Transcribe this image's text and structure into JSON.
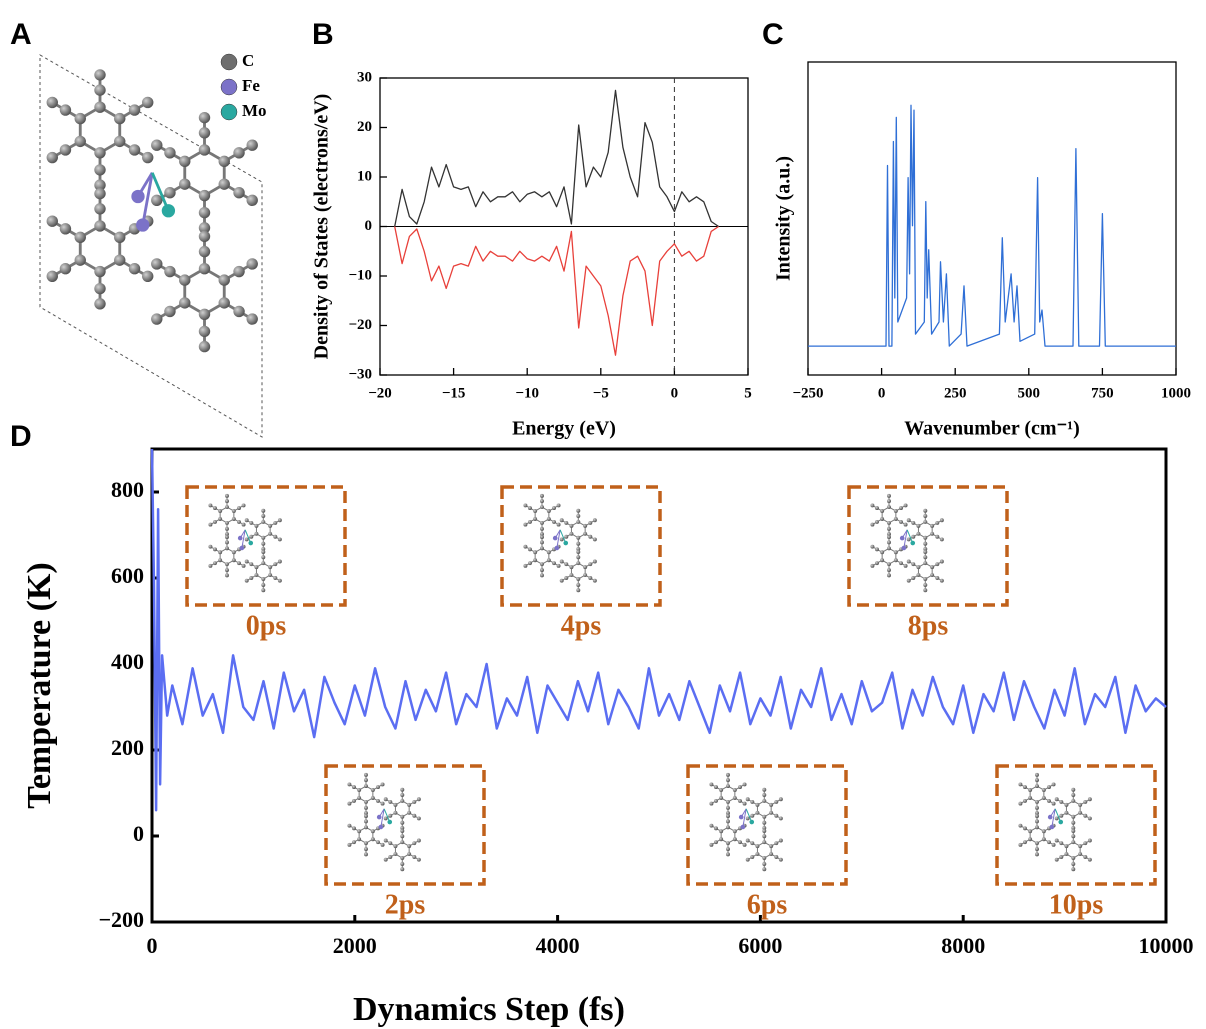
{
  "chart_data": [
    {
      "type": "structure",
      "panel": "A",
      "legend": [
        "C",
        "Fe",
        "Mo"
      ],
      "colors": [
        "#6e6e6e",
        "#7b72c8",
        "#2aa8a0"
      ]
    },
    {
      "type": "line",
      "panel": "B",
      "xlabel": "Energy (eV)",
      "ylabel": "Density of States (electrons/eV)",
      "xlim": [
        -20,
        5
      ],
      "ylim": [
        -30,
        30
      ],
      "xticks": [
        {
          "value": -20,
          "label": "−20"
        },
        {
          "value": -15,
          "label": "−15"
        },
        {
          "value": -10,
          "label": "−10"
        },
        {
          "value": -5,
          "label": "−5"
        },
        0,
        5
      ],
      "yticks": [
        {
          "value": -30,
          "label": "−30"
        },
        {
          "value": -20,
          "label": "−20"
        },
        {
          "value": -10,
          "label": "−10"
        },
        0,
        10,
        20,
        30
      ],
      "x": [
        -19,
        -18.5,
        -18,
        -17.5,
        -17,
        -16.5,
        -16,
        -15.5,
        -15,
        -14.5,
        -14,
        -13.5,
        -13,
        -12.5,
        -12,
        -11.5,
        -11,
        -10.5,
        -10,
        -9.5,
        -9,
        -8.5,
        -8,
        -7.5,
        -7,
        -6.5,
        -6,
        -5.5,
        -5,
        -4.5,
        -4,
        -3.5,
        -3,
        -2.5,
        -2,
        -1.5,
        -1,
        -0.5,
        0,
        0.5,
        1,
        1.5,
        2,
        2.5,
        3
      ],
      "series": [
        {
          "color": "#333333",
          "values": [
            0,
            7.5,
            2,
            0.5,
            5,
            12,
            8,
            12.5,
            8,
            7.5,
            8,
            4,
            7,
            5,
            6,
            6,
            7,
            5,
            6.5,
            7,
            6,
            7,
            4,
            8,
            0.5,
            20.5,
            8,
            12,
            10,
            15,
            27.5,
            16,
            10,
            6,
            21,
            17,
            8,
            6,
            3,
            7,
            5,
            6,
            5,
            1,
            0
          ]
        },
        {
          "color": "#e8403a",
          "values": [
            0,
            -7.5,
            -2,
            -0.5,
            -5,
            -11,
            -8,
            -12.5,
            -8,
            -7.5,
            -8,
            -4,
            -7,
            -5,
            -6,
            -6,
            -7,
            -5,
            -6.5,
            -7,
            -6,
            -7,
            -4,
            -9,
            -1,
            -20.5,
            -8,
            -10,
            -12,
            -18,
            -26,
            -14,
            -7,
            -6,
            -9,
            -20,
            -7,
            -5,
            -3.5,
            -6,
            -5,
            -7,
            -6,
            -1,
            0
          ]
        }
      ]
    },
    {
      "type": "line",
      "panel": "C",
      "xlabel": "Wavenumber (cm⁻¹)",
      "ylabel": "Intensity (a.u.)",
      "xlim": [
        -250,
        1000
      ],
      "ylim": [
        -0.12,
        1.18
      ],
      "xticks": [
        {
          "value": -250,
          "label": "−250"
        },
        0,
        250,
        500,
        750,
        1000
      ],
      "x": [
        -250,
        0,
        15,
        20,
        25,
        35,
        40,
        45,
        50,
        55,
        85,
        90,
        95,
        100,
        105,
        110,
        115,
        145,
        150,
        155,
        160,
        170,
        195,
        200,
        210,
        220,
        230,
        270,
        280,
        290,
        400,
        410,
        420,
        440,
        450,
        460,
        470,
        520,
        530,
        537,
        545,
        555,
        650,
        660,
        670,
        740,
        750,
        760,
        1000
      ],
      "series": [
        {
          "color": "#2f6fd6",
          "values": [
            0,
            0,
            0,
            0.75,
            0,
            0,
            0.85,
            0.2,
            0.95,
            0.1,
            0.2,
            0.7,
            0.3,
            1.0,
            0.5,
            0.98,
            0.05,
            0.1,
            0.6,
            0.2,
            0.4,
            0.05,
            0.1,
            0.35,
            0.1,
            0.3,
            0,
            0.05,
            0.25,
            0,
            0.05,
            0.45,
            0.1,
            0.3,
            0.1,
            0.25,
            0.02,
            0.05,
            0.7,
            0.1,
            0.15,
            0,
            0,
            0.82,
            0,
            0,
            0.55,
            0,
            0
          ]
        }
      ]
    },
    {
      "type": "line",
      "panel": "D",
      "xlabel": "Dynamics Step (fs)",
      "ylabel": "Temperature (K)",
      "xlim": [
        0,
        10000
      ],
      "ylim": [
        -200,
        900
      ],
      "xticks": [
        0,
        2000,
        4000,
        6000,
        8000,
        10000
      ],
      "yticks": [
        {
          "value": -200,
          "label": "−200"
        },
        0,
        200,
        400,
        600,
        800
      ],
      "annotations": [
        "0ps",
        "2ps",
        "4ps",
        "6ps",
        "8ps",
        "10ps"
      ],
      "x": [
        0,
        20,
        40,
        60,
        80,
        100,
        150,
        200,
        300,
        400,
        500,
        600,
        700,
        800,
        900,
        1000,
        1100,
        1200,
        1300,
        1400,
        1500,
        1600,
        1700,
        1800,
        1900,
        2000,
        2100,
        2200,
        2300,
        2400,
        2500,
        2600,
        2700,
        2800,
        2900,
        3000,
        3100,
        3200,
        3300,
        3400,
        3500,
        3600,
        3700,
        3800,
        3900,
        4000,
        4100,
        4200,
        4300,
        4400,
        4500,
        4600,
        4700,
        4800,
        4900,
        5000,
        5100,
        5200,
        5300,
        5400,
        5500,
        5600,
        5700,
        5800,
        5900,
        6000,
        6100,
        6200,
        6300,
        6400,
        6500,
        6600,
        6700,
        6800,
        6900,
        7000,
        7100,
        7200,
        7300,
        7400,
        7500,
        7600,
        7700,
        7800,
        7900,
        8000,
        8100,
        8200,
        8300,
        8400,
        8500,
        8600,
        8700,
        8800,
        8900,
        9000,
        9100,
        9200,
        9300,
        9400,
        9500,
        9600,
        9700,
        9800,
        9900,
        10000
      ],
      "series": [
        {
          "color": "#5b6ef2",
          "values": [
            900,
            580,
            60,
            760,
            120,
            420,
            280,
            350,
            260,
            390,
            280,
            330,
            240,
            420,
            300,
            270,
            360,
            250,
            380,
            290,
            340,
            230,
            370,
            310,
            260,
            350,
            280,
            390,
            300,
            250,
            360,
            270,
            340,
            290,
            380,
            260,
            330,
            300,
            400,
            250,
            320,
            280,
            370,
            240,
            350,
            310,
            270,
            360,
            290,
            380,
            260,
            340,
            300,
            250,
            390,
            280,
            330,
            270,
            360,
            300,
            240,
            350,
            290,
            380,
            260,
            320,
            280,
            370,
            250,
            340,
            300,
            390,
            270,
            330,
            260,
            360,
            290,
            310,
            380,
            250,
            340,
            280,
            370,
            300,
            260,
            350,
            240,
            330,
            290,
            380,
            270,
            360,
            300,
            250,
            340,
            280,
            390,
            260,
            330,
            300,
            370,
            240,
            350,
            290,
            320,
            300
          ]
        }
      ]
    }
  ]
}
